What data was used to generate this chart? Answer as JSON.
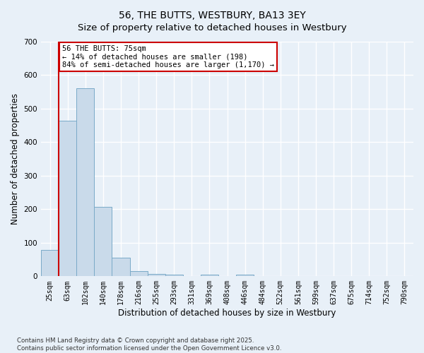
{
  "title": "56, THE BUTTS, WESTBURY, BA13 3EY",
  "subtitle": "Size of property relative to detached houses in Westbury",
  "xlabel": "Distribution of detached houses by size in Westbury",
  "ylabel": "Number of detached properties",
  "categories": [
    "25sqm",
    "63sqm",
    "102sqm",
    "140sqm",
    "178sqm",
    "216sqm",
    "255sqm",
    "293sqm",
    "331sqm",
    "369sqm",
    "408sqm",
    "446sqm",
    "484sqm",
    "522sqm",
    "561sqm",
    "599sqm",
    "637sqm",
    "675sqm",
    "714sqm",
    "752sqm",
    "790sqm"
  ],
  "values": [
    78,
    465,
    560,
    207,
    56,
    15,
    8,
    5,
    0,
    5,
    0,
    5,
    0,
    0,
    0,
    0,
    0,
    0,
    0,
    0,
    0
  ],
  "bar_color": "#c9daea",
  "bar_edge_color": "#7aaac8",
  "property_line_x": 0.5,
  "annotation_text": "56 THE BUTTS: 75sqm\n← 14% of detached houses are smaller (198)\n84% of semi-detached houses are larger (1,170) →",
  "annotation_box_facecolor": "#ffffff",
  "annotation_box_edgecolor": "#cc0000",
  "vline_color": "#cc0000",
  "ylim": [
    0,
    700
  ],
  "yticks": [
    0,
    100,
    200,
    300,
    400,
    500,
    600,
    700
  ],
  "footer_line1": "Contains HM Land Registry data © Crown copyright and database right 2025.",
  "footer_line2": "Contains public sector information licensed under the Open Government Licence v3.0.",
  "bg_color": "#e8f0f8",
  "plot_bg_color": "#e8f0f8",
  "grid_color": "#ffffff",
  "title_fontsize": 10,
  "tick_fontsize": 7,
  "label_fontsize": 8.5,
  "annot_fontsize": 7.5
}
